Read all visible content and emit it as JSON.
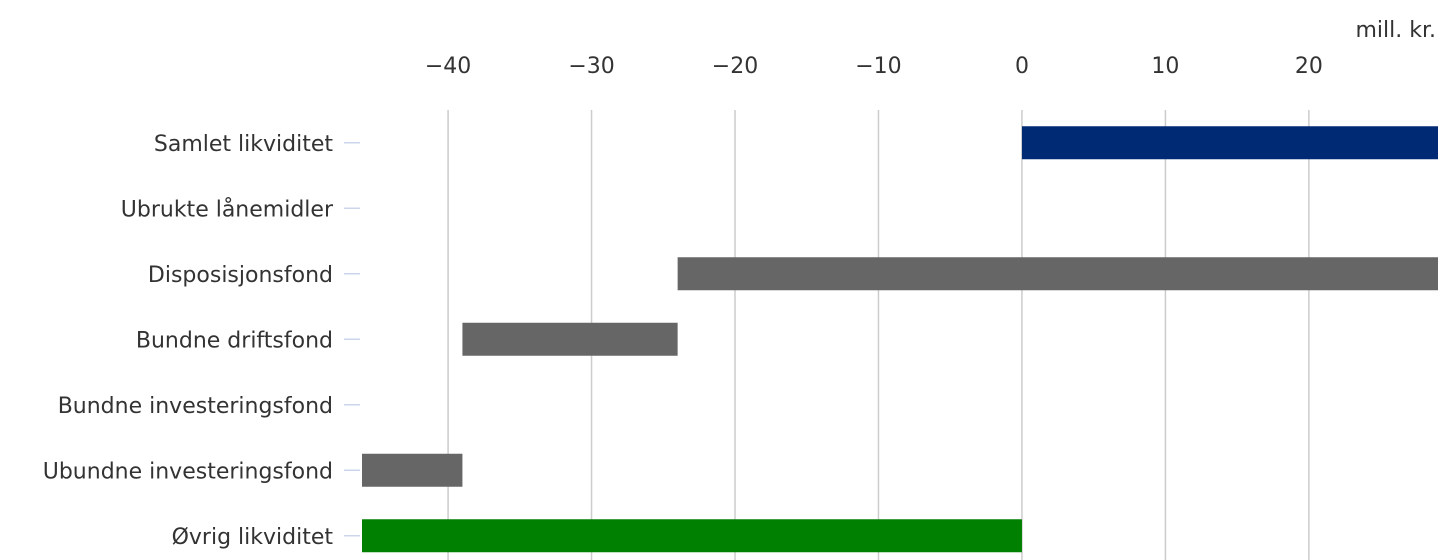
{
  "chart_data": {
    "type": "bar",
    "orientation": "horizontal",
    "subtype": "waterfall",
    "unit": "mill. kr.",
    "categories": [
      "Samlet likviditet",
      "Ubrukte lånemidler",
      "Disposisjonsfond",
      "Bundne driftsfond",
      "Bundne investeringsfond",
      "Ubundne investeringsfond",
      "Øvrig likviditet"
    ],
    "bars": [
      {
        "category": "Samlet likviditet",
        "start": 0,
        "end": 29,
        "color": "#012a74"
      },
      {
        "category": "Ubrukte lånemidler",
        "start": 29,
        "end": 29,
        "color": "#666666"
      },
      {
        "category": "Disposisjonsfond",
        "start": -24,
        "end": 29,
        "color": "#666666"
      },
      {
        "category": "Bundne driftsfond",
        "start": -39,
        "end": -24,
        "color": "#666666"
      },
      {
        "category": "Bundne investeringsfond",
        "start": -39,
        "end": -39,
        "color": "#666666"
      },
      {
        "category": "Ubundne investeringsfond",
        "start": -46,
        "end": -39,
        "color": "#666666"
      },
      {
        "category": "Øvrig likviditet",
        "start": -46,
        "end": 0,
        "color": "#008000"
      }
    ],
    "xticks": [
      -40,
      -30,
      -20,
      -10,
      0,
      10,
      20
    ],
    "xtick_labels": [
      "−40",
      "−30",
      "−20",
      "−10",
      "0",
      "10",
      "20"
    ],
    "xlim": [
      -46,
      29
    ],
    "axis_position": "top",
    "grid": true,
    "legend": "none"
  }
}
